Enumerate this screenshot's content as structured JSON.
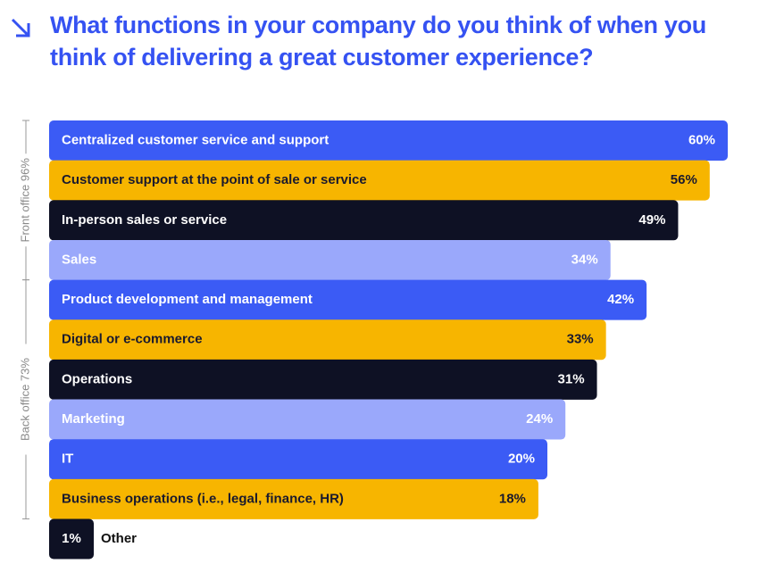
{
  "chart_data": {
    "type": "bar",
    "orientation": "horizontal",
    "title": "What functions in your company do you think of when you think of delivering a great customer experience?",
    "categories": [
      "Centralized customer service and support",
      "Customer support at the point of sale or service",
      "In-person sales or service",
      "Sales",
      "Product development and management",
      "Digital or e-commerce",
      "Operations",
      "Marketing",
      "IT",
      "Business operations (i.e., legal, finance, HR)",
      "Other"
    ],
    "values": [
      60,
      56,
      49,
      34,
      42,
      33,
      31,
      24,
      20,
      18,
      1
    ],
    "value_labels": [
      "60%",
      "56%",
      "49%",
      "34%",
      "42%",
      "33%",
      "31%",
      "24%",
      "20%",
      "18%",
      "1%"
    ],
    "colors": [
      "#3b5bf5",
      "#f7b500",
      "#0e1124",
      "#9aa8fb",
      "#3b5bf5",
      "#f7b500",
      "#0e1124",
      "#9aa8fb",
      "#3b5bf5",
      "#f7b500",
      "#0e1124"
    ],
    "groups": [
      "Front office 96%",
      "Back office 73%"
    ]
  }
}
